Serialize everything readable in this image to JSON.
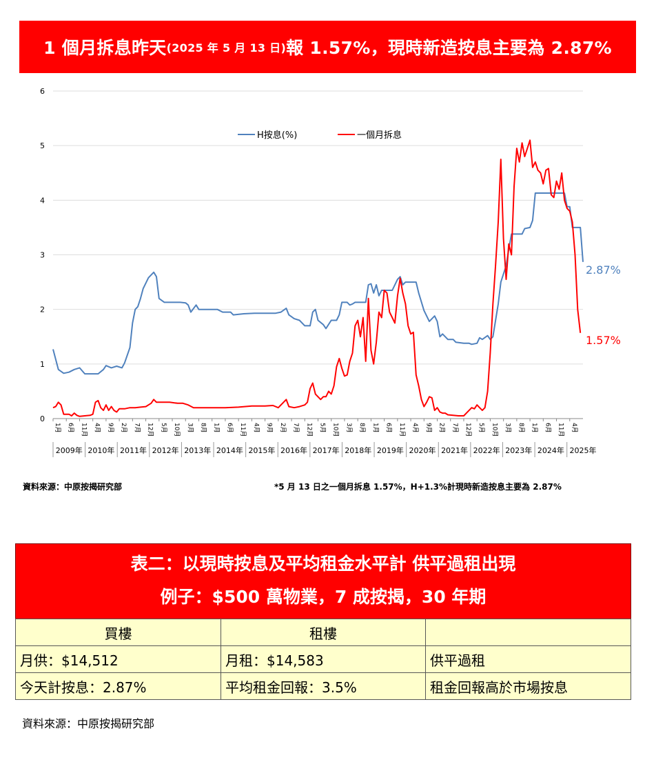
{
  "banner": {
    "part1": "1 個月拆息昨天",
    "part2": "(2025 年 5 月 13 日)",
    "part3": "報 1.57%，現時新造按息主要為 2.87%"
  },
  "chart_data": {
    "type": "line",
    "ylim": [
      0,
      6
    ],
    "y_ticks": [
      "0",
      "1",
      "2",
      "3",
      "4",
      "5",
      "6"
    ],
    "x_month_labels": [
      "1月",
      "6月",
      "11月",
      "4月",
      "9月",
      "2月",
      "7月",
      "12月",
      "5月",
      "10月",
      "3月",
      "8月",
      "1月",
      "6月",
      "11月",
      "4月",
      "9月",
      "2月",
      "7月",
      "12月",
      "5月",
      "10月",
      "3月",
      "8月",
      "1月",
      "6月",
      "11月",
      "4月",
      "9月",
      "2月",
      "7月",
      "12月",
      "5月",
      "10月",
      "3月",
      "8月",
      "1月",
      "6月",
      "11月",
      "4月"
    ],
    "x_year_labels": [
      "2009年",
      "2010年",
      "2011年",
      "2012年",
      "2013年",
      "2014年",
      "2015年",
      "2016年",
      "2017年",
      "2018年",
      "2019年",
      "2020年",
      "2021年",
      "2022年",
      "2023年",
      "2024年",
      "2025年"
    ],
    "legend": [
      "H按息(%)",
      "一個月拆息"
    ],
    "end_labels": [
      "2.87%",
      "1.57%"
    ],
    "series": [
      {
        "name": "H按息(%)",
        "color": "#4f81bd",
        "values": [
          [
            0,
            1.27
          ],
          [
            2,
            0.9
          ],
          [
            4,
            0.83
          ],
          [
            6,
            0.85
          ],
          [
            8,
            0.9
          ],
          [
            10,
            0.93
          ],
          [
            12,
            0.82
          ],
          [
            14,
            0.82
          ],
          [
            17,
            0.82
          ],
          [
            19,
            0.9
          ],
          [
            20,
            0.97
          ],
          [
            22,
            0.93
          ],
          [
            24,
            0.96
          ],
          [
            26,
            0.93
          ],
          [
            27,
            1.02
          ],
          [
            29,
            1.3
          ],
          [
            30,
            1.75
          ],
          [
            31,
            2.0
          ],
          [
            32,
            2.05
          ],
          [
            33,
            2.2
          ],
          [
            34,
            2.38
          ],
          [
            36,
            2.58
          ],
          [
            38,
            2.68
          ],
          [
            39,
            2.6
          ],
          [
            40,
            2.2
          ],
          [
            42,
            2.13
          ],
          [
            44,
            2.13
          ],
          [
            46,
            2.13
          ],
          [
            48,
            2.13
          ],
          [
            50,
            2.12
          ],
          [
            51,
            2.08
          ],
          [
            52,
            1.95
          ],
          [
            54,
            2.08
          ],
          [
            55,
            2.0
          ],
          [
            58,
            2.0
          ],
          [
            62,
            2.0
          ],
          [
            64,
            1.95
          ],
          [
            67,
            1.95
          ],
          [
            68,
            1.9
          ],
          [
            72,
            1.92
          ],
          [
            76,
            1.93
          ],
          [
            80,
            1.93
          ],
          [
            84,
            1.93
          ],
          [
            86,
            1.95
          ],
          [
            88,
            2.02
          ],
          [
            89,
            1.9
          ],
          [
            91,
            1.83
          ],
          [
            93,
            1.8
          ],
          [
            95,
            1.7
          ],
          [
            97,
            1.7
          ],
          [
            98,
            1.95
          ],
          [
            99,
            2.0
          ],
          [
            100,
            1.8
          ],
          [
            102,
            1.72
          ],
          [
            103,
            1.65
          ],
          [
            105,
            1.8
          ],
          [
            107,
            1.8
          ],
          [
            108,
            1.9
          ],
          [
            109,
            2.13
          ],
          [
            111,
            2.13
          ],
          [
            112,
            2.08
          ],
          [
            113,
            2.1
          ],
          [
            114,
            2.13
          ],
          [
            118,
            2.13
          ],
          [
            119,
            2.45
          ],
          [
            120,
            2.47
          ],
          [
            121,
            2.3
          ],
          [
            122,
            2.45
          ],
          [
            123,
            2.25
          ],
          [
            124,
            2.35
          ],
          [
            126,
            2.35
          ],
          [
            128,
            2.35
          ],
          [
            130,
            2.55
          ],
          [
            131,
            2.6
          ],
          [
            132,
            2.45
          ],
          [
            133,
            2.5
          ],
          [
            137,
            2.5
          ],
          [
            138,
            2.3
          ],
          [
            140,
            1.98
          ],
          [
            142,
            1.78
          ],
          [
            144,
            1.88
          ],
          [
            145,
            1.78
          ],
          [
            146,
            1.5
          ],
          [
            147,
            1.55
          ],
          [
            149,
            1.45
          ],
          [
            151,
            1.45
          ],
          [
            152,
            1.4
          ],
          [
            155,
            1.38
          ],
          [
            157,
            1.38
          ],
          [
            158,
            1.36
          ],
          [
            160,
            1.38
          ],
          [
            161,
            1.48
          ],
          [
            162,
            1.45
          ],
          [
            164,
            1.52
          ],
          [
            165,
            1.45
          ],
          [
            166,
            1.5
          ],
          [
            168,
            2.1
          ],
          [
            169,
            2.5
          ],
          [
            171,
            2.8
          ],
          [
            172,
            3.1
          ],
          [
            173,
            3.38
          ],
          [
            177,
            3.38
          ],
          [
            178,
            3.48
          ],
          [
            180,
            3.5
          ],
          [
            181,
            3.63
          ],
          [
            182,
            4.13
          ],
          [
            193,
            4.13
          ],
          [
            194,
            3.88
          ],
          [
            195,
            3.88
          ],
          [
            196,
            3.5
          ],
          [
            199,
            3.5
          ],
          [
            200,
            2.87
          ]
        ]
      },
      {
        "name": "一個月拆息",
        "color": "#ff0000",
        "values": [
          [
            0,
            0.2
          ],
          [
            1,
            0.22
          ],
          [
            2,
            0.3
          ],
          [
            3,
            0.25
          ],
          [
            4,
            0.08
          ],
          [
            6,
            0.08
          ],
          [
            7,
            0.05
          ],
          [
            8,
            0.1
          ],
          [
            9,
            0.06
          ],
          [
            10,
            0.04
          ],
          [
            12,
            0.05
          ],
          [
            14,
            0.06
          ],
          [
            15,
            0.08
          ],
          [
            16,
            0.3
          ],
          [
            17,
            0.33
          ],
          [
            18,
            0.2
          ],
          [
            19,
            0.15
          ],
          [
            20,
            0.25
          ],
          [
            21,
            0.15
          ],
          [
            22,
            0.22
          ],
          [
            23,
            0.15
          ],
          [
            24,
            0.12
          ],
          [
            25,
            0.18
          ],
          [
            27,
            0.18
          ],
          [
            29,
            0.2
          ],
          [
            31,
            0.2
          ],
          [
            33,
            0.21
          ],
          [
            35,
            0.22
          ],
          [
            37,
            0.28
          ],
          [
            38,
            0.35
          ],
          [
            39,
            0.3
          ],
          [
            41,
            0.3
          ],
          [
            44,
            0.3
          ],
          [
            47,
            0.28
          ],
          [
            49,
            0.28
          ],
          [
            51,
            0.25
          ],
          [
            53,
            0.2
          ],
          [
            55,
            0.2
          ],
          [
            60,
            0.2
          ],
          [
            65,
            0.2
          ],
          [
            70,
            0.21
          ],
          [
            75,
            0.23
          ],
          [
            80,
            0.23
          ],
          [
            83,
            0.24
          ],
          [
            85,
            0.2
          ],
          [
            87,
            0.3
          ],
          [
            88,
            0.35
          ],
          [
            89,
            0.22
          ],
          [
            91,
            0.2
          ],
          [
            93,
            0.22
          ],
          [
            95,
            0.25
          ],
          [
            96,
            0.3
          ],
          [
            97,
            0.55
          ],
          [
            98,
            0.65
          ],
          [
            99,
            0.45
          ],
          [
            101,
            0.35
          ],
          [
            102,
            0.4
          ],
          [
            103,
            0.4
          ],
          [
            104,
            0.5
          ],
          [
            105,
            0.45
          ],
          [
            106,
            0.6
          ],
          [
            107,
            0.95
          ],
          [
            108,
            1.1
          ],
          [
            109,
            0.92
          ],
          [
            110,
            0.78
          ],
          [
            111,
            0.8
          ],
          [
            112,
            1.05
          ],
          [
            113,
            1.2
          ],
          [
            114,
            1.7
          ],
          [
            115,
            1.8
          ],
          [
            116,
            1.5
          ],
          [
            117,
            1.85
          ],
          [
            118,
            1.05
          ],
          [
            119,
            2.2
          ],
          [
            120,
            1.25
          ],
          [
            121,
            1.0
          ],
          [
            122,
            1.4
          ],
          [
            123,
            1.95
          ],
          [
            124,
            1.85
          ],
          [
            125,
            2.35
          ],
          [
            126,
            2.3
          ],
          [
            127,
            1.95
          ],
          [
            128,
            1.85
          ],
          [
            129,
            1.75
          ],
          [
            130,
            2.25
          ],
          [
            131,
            2.57
          ],
          [
            132,
            2.3
          ],
          [
            133,
            2.1
          ],
          [
            134,
            1.7
          ],
          [
            135,
            1.55
          ],
          [
            136,
            1.58
          ],
          [
            137,
            0.8
          ],
          [
            138,
            0.6
          ],
          [
            139,
            0.35
          ],
          [
            140,
            0.22
          ],
          [
            141,
            0.3
          ],
          [
            142,
            0.4
          ],
          [
            143,
            0.38
          ],
          [
            144,
            0.15
          ],
          [
            145,
            0.2
          ],
          [
            146,
            0.12
          ],
          [
            147,
            0.1
          ],
          [
            148,
            0.1
          ],
          [
            149,
            0.07
          ],
          [
            151,
            0.06
          ],
          [
            153,
            0.05
          ],
          [
            155,
            0.05
          ],
          [
            156,
            0.1
          ],
          [
            157,
            0.15
          ],
          [
            158,
            0.2
          ],
          [
            159,
            0.18
          ],
          [
            160,
            0.25
          ],
          [
            161,
            0.2
          ],
          [
            162,
            0.15
          ],
          [
            163,
            0.2
          ],
          [
            164,
            0.5
          ],
          [
            165,
            1.2
          ],
          [
            166,
            2.1
          ],
          [
            167,
            2.8
          ],
          [
            168,
            3.6
          ],
          [
            169,
            4.75
          ],
          [
            170,
            3.3
          ],
          [
            171,
            2.55
          ],
          [
            172,
            3.2
          ],
          [
            173,
            3.0
          ],
          [
            174,
            4.25
          ],
          [
            175,
            4.95
          ],
          [
            176,
            4.7
          ],
          [
            177,
            5.05
          ],
          [
            178,
            4.8
          ],
          [
            179,
            4.95
          ],
          [
            180,
            5.1
          ],
          [
            181,
            4.6
          ],
          [
            182,
            4.7
          ],
          [
            183,
            4.55
          ],
          [
            184,
            4.5
          ],
          [
            185,
            4.3
          ],
          [
            186,
            4.55
          ],
          [
            187,
            4.58
          ],
          [
            188,
            4.1
          ],
          [
            189,
            4.05
          ],
          [
            190,
            4.35
          ],
          [
            191,
            4.2
          ],
          [
            192,
            4.5
          ],
          [
            193,
            4.0
          ],
          [
            194,
            3.85
          ],
          [
            195,
            3.8
          ],
          [
            196,
            3.6
          ],
          [
            197,
            3.0
          ],
          [
            198,
            2.0
          ],
          [
            199,
            1.57
          ]
        ]
      }
    ]
  },
  "sources": {
    "left": "資料來源：中原按揭研究部",
    "right": "*5 月 13 日之一個月拆息 1.57%，H+1.3%計現時新造按息主要為 2.87%",
    "bottom": "資料來源：中原按揭研究部"
  },
  "table": {
    "title_line1": "表二：以現時按息及平均租金水平計  供平過租出現",
    "title_line2": "例子：$500 萬物業，7 成按揭，30 年期",
    "headers": [
      "買樓",
      "租樓",
      ""
    ],
    "rows": [
      [
        "月供：$14,512",
        "月租：$14,583",
        "供平過租"
      ],
      [
        "今天計按息：2.87%",
        "平均租金回報：3.5%",
        "租金回報高於市場按息"
      ]
    ],
    "bg_color": "#ffffcc",
    "header_color": "#ff0000"
  }
}
